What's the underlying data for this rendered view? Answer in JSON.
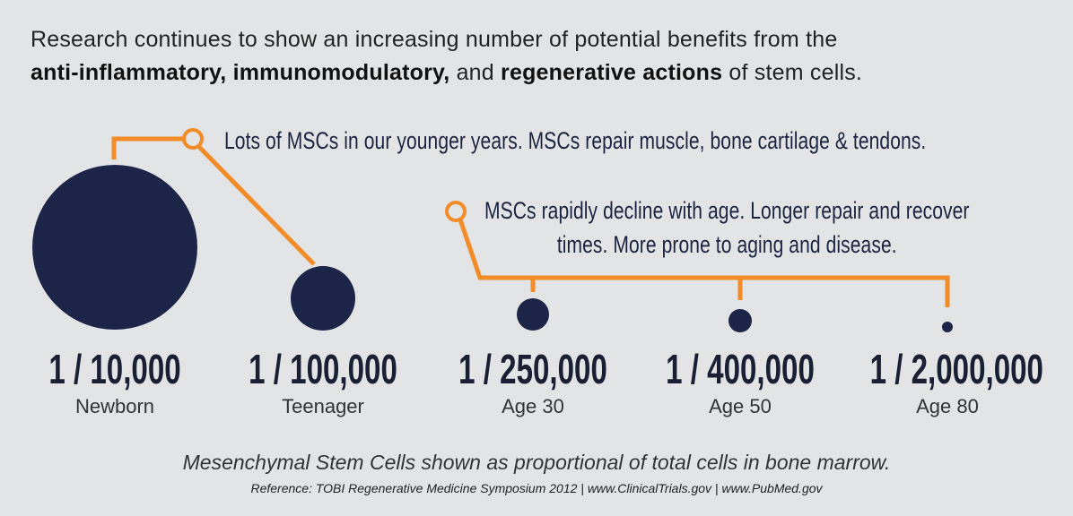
{
  "intro": {
    "lead": "Research continues to show an increasing number of potential benefits from the",
    "term1": "anti-inflammatory, immunomodulatory,",
    "and": "and",
    "term2": "regenerative actions",
    "tail": "of stem cells."
  },
  "callouts": {
    "young": "Lots of MSCs in our younger years. MSCs repair muscle, bone cartilage & tendons.",
    "decline_line1": "MSCs rapidly decline with age. Longer repair and recover",
    "decline_line2": "times. More prone to aging and disease."
  },
  "stages": [
    {
      "ratio": "1 / 10,000",
      "label": "Newborn"
    },
    {
      "ratio": "1 / 100,000",
      "label": "Teenager"
    },
    {
      "ratio": "1 / 250,000",
      "label": "Age 30"
    },
    {
      "ratio": "1 / 400,000",
      "label": "Age 50"
    },
    {
      "ratio": "1 / 2,000,000",
      "label": "Age 80"
    }
  ],
  "footer": {
    "note": "Mesenchymal Stem Cells shown as proportional of total cells in bone marrow.",
    "reference": "Reference: TOBI Regenerative Medicine Symposium 2012  |  www.ClinicalTrials.gov  |  www.PubMed.gov"
  },
  "colors": {
    "background": "#e3e4e5",
    "circle": "#1c2448",
    "accent": "#f28c28",
    "text": "#1c2340"
  }
}
